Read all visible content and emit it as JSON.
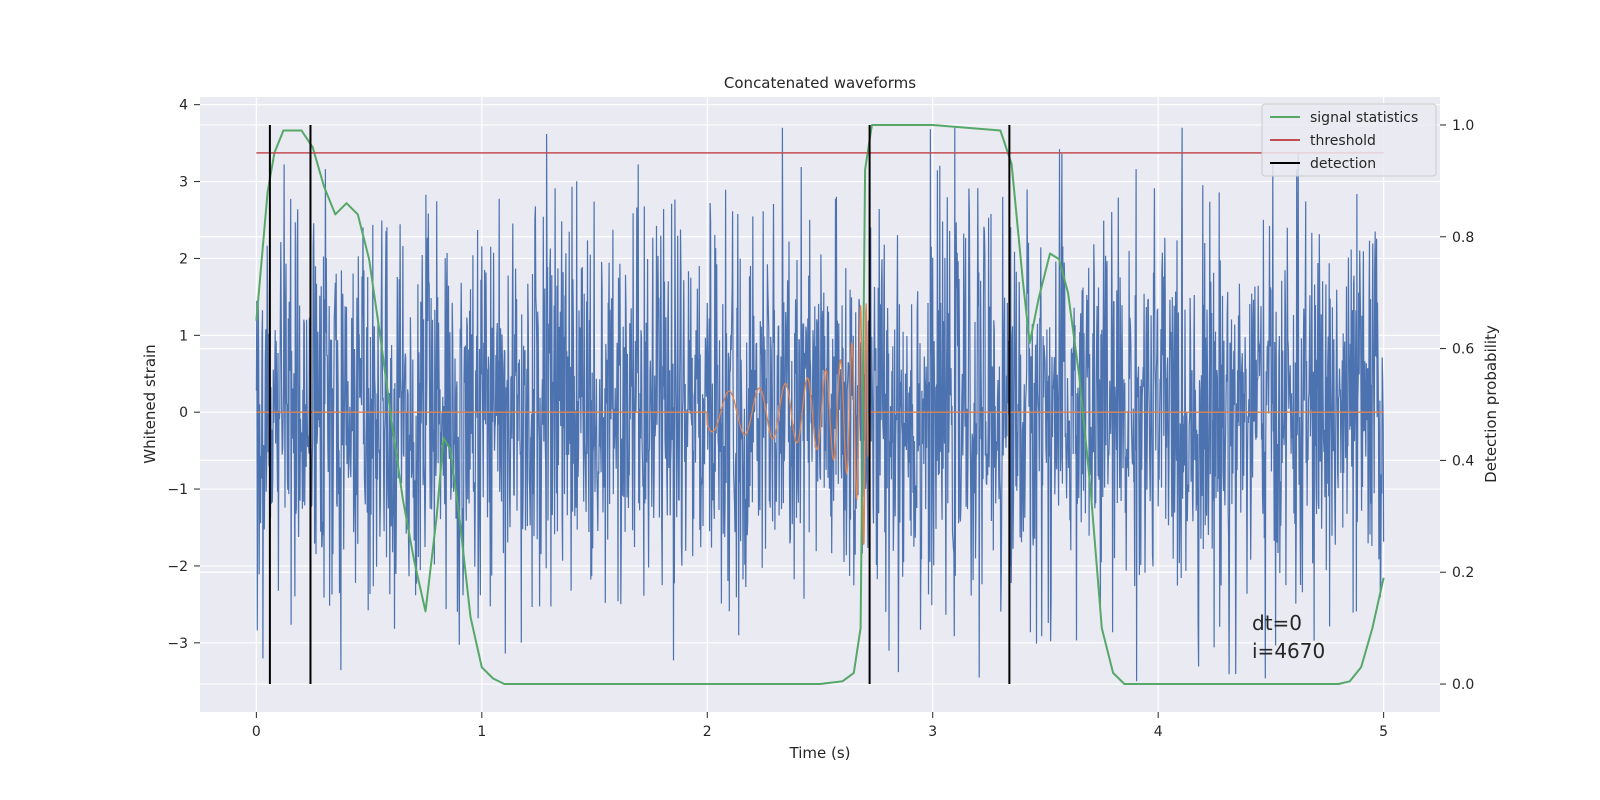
{
  "chart_data": {
    "type": "line",
    "title": "Concatenated waveforms",
    "xlabel": "Time (s)",
    "ylabel": "Whitened strain",
    "y2label": "Detection probability",
    "xlim": [
      -0.25,
      5.25
    ],
    "ylim": [
      -3.9,
      4.1
    ],
    "y2lim": [
      -0.05,
      1.05
    ],
    "x_ticks": [
      0,
      1,
      2,
      3,
      4,
      5
    ],
    "x_tick_labels": [
      "0",
      "1",
      "2",
      "3",
      "4",
      "5"
    ],
    "y_ticks": [
      -3,
      -2,
      -1,
      0,
      1,
      2,
      3,
      4
    ],
    "y_tick_labels": [
      "−3",
      "−2",
      "−1",
      "0",
      "1",
      "2",
      "3",
      "4"
    ],
    "y2_ticks": [
      0.0,
      0.2,
      0.4,
      0.6,
      0.8,
      1.0
    ],
    "y2_tick_labels": [
      "0.0",
      "0.2",
      "0.4",
      "0.6",
      "0.8",
      "1.0"
    ],
    "grid": true,
    "legend_position": "top-right",
    "annotations": [
      "dt=0",
      "i=4670"
    ],
    "colors": {
      "background": "#eaeaf2",
      "grid": "#ffffff",
      "strain": "#4c72b0",
      "template": "#dd8452",
      "signal": "#55a868",
      "threshold": "#c44e52",
      "detection": "#000000"
    },
    "series": [
      {
        "name": "",
        "axis": "left",
        "role": "whitened strain noise (sampled envelope)",
        "x_range": [
          0,
          5
        ],
        "typical_amplitude": 1.3,
        "max_peak": 3.7,
        "min_peak": -3.5
      },
      {
        "name": "",
        "axis": "left",
        "role": "injected chirp template",
        "x": [
          0,
          2.0,
          2.2,
          2.4,
          2.5,
          2.6,
          2.65,
          2.68,
          2.7,
          2.72,
          5.0
        ],
        "envelope": [
          0,
          0.25,
          0.3,
          0.4,
          0.5,
          0.7,
          0.95,
          1.4,
          1.9,
          0,
          0
        ]
      },
      {
        "name": "signal statistics",
        "axis": "right",
        "x": [
          0,
          0.05,
          0.08,
          0.12,
          0.2,
          0.25,
          0.3,
          0.35,
          0.4,
          0.45,
          0.5,
          0.55,
          0.6,
          0.65,
          0.7,
          0.75,
          0.8,
          0.83,
          0.86,
          0.9,
          0.95,
          1.0,
          1.05,
          1.1,
          1.5,
          2.0,
          2.5,
          2.6,
          2.65,
          2.68,
          2.7,
          2.73,
          3.0,
          3.3,
          3.35,
          3.4,
          3.43,
          3.47,
          3.52,
          3.56,
          3.6,
          3.65,
          3.7,
          3.75,
          3.8,
          3.85,
          4.5,
          4.8,
          4.85,
          4.9,
          4.95,
          5.0
        ],
        "y": [
          0.65,
          0.88,
          0.95,
          0.99,
          0.99,
          0.96,
          0.89,
          0.84,
          0.86,
          0.84,
          0.76,
          0.62,
          0.47,
          0.33,
          0.22,
          0.13,
          0.3,
          0.44,
          0.42,
          0.3,
          0.12,
          0.03,
          0.01,
          0.0,
          0.0,
          0.0,
          0.0,
          0.005,
          0.02,
          0.1,
          0.92,
          1.0,
          1.0,
          0.99,
          0.93,
          0.72,
          0.61,
          0.69,
          0.77,
          0.76,
          0.7,
          0.55,
          0.35,
          0.1,
          0.02,
          0.0,
          0.0,
          0.0,
          0.005,
          0.03,
          0.1,
          0.19
        ]
      },
      {
        "name": "threshold",
        "axis": "right",
        "x": [
          0,
          5
        ],
        "y": [
          0.95,
          0.95
        ]
      },
      {
        "name": "detection",
        "axis": "right",
        "x_positions": [
          0.06,
          0.24,
          2.72,
          3.34
        ],
        "y_range": [
          0,
          1
        ]
      }
    ],
    "legend": [
      {
        "label": "signal statistics",
        "color": "#55a868"
      },
      {
        "label": "threshold",
        "color": "#c44e52"
      },
      {
        "label": "detection",
        "color": "#000000"
      }
    ]
  }
}
